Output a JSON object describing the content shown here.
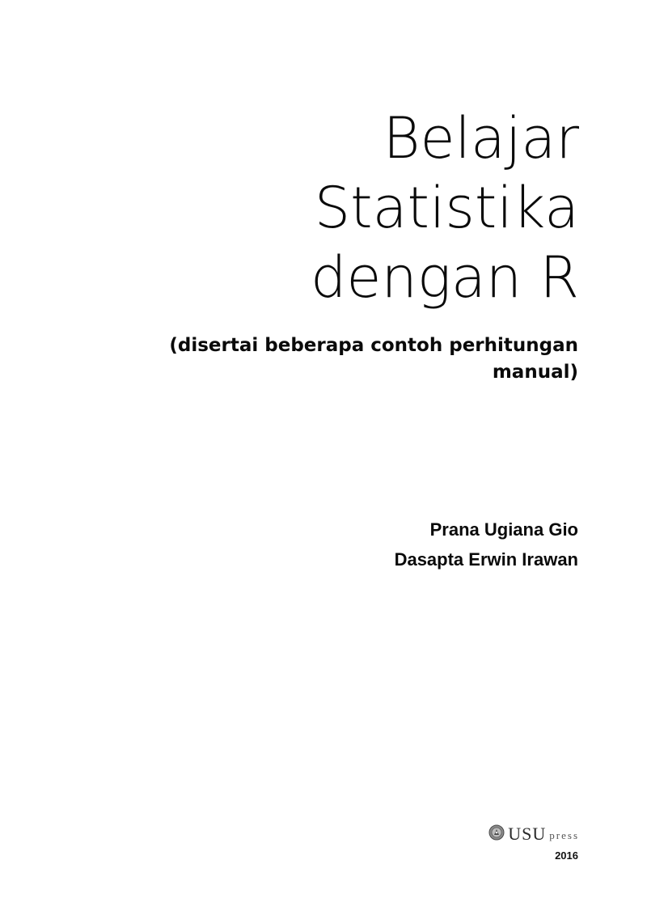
{
  "cover": {
    "title_lines": [
      "Belajar",
      "Statistika",
      "dengan R"
    ],
    "subtitle_lines": [
      "(disertai beberapa contoh perhitungan",
      "manual)"
    ],
    "authors": [
      "Prana Ugiana Gio",
      "Dasapta Erwin Irawan"
    ],
    "publisher": {
      "logo_icon": "usu-emblem-icon",
      "name_main": "USU",
      "name_suffix": "press"
    },
    "year": "2016"
  }
}
